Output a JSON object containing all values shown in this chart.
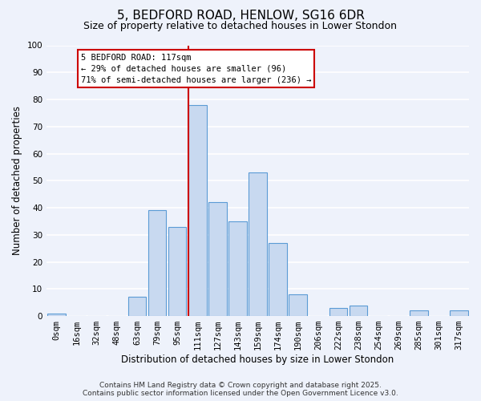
{
  "title": "5, BEDFORD ROAD, HENLOW, SG16 6DR",
  "subtitle": "Size of property relative to detached houses in Lower Stondon",
  "xlabel": "Distribution of detached houses by size in Lower Stondon",
  "ylabel": "Number of detached properties",
  "bin_labels": [
    "0sqm",
    "16sqm",
    "32sqm",
    "48sqm",
    "63sqm",
    "79sqm",
    "95sqm",
    "111sqm",
    "127sqm",
    "143sqm",
    "159sqm",
    "174sqm",
    "190sqm",
    "206sqm",
    "222sqm",
    "238sqm",
    "254sqm",
    "269sqm",
    "285sqm",
    "301sqm",
    "317sqm"
  ],
  "bar_heights": [
    1,
    0,
    0,
    0,
    7,
    39,
    33,
    78,
    42,
    35,
    53,
    27,
    8,
    0,
    3,
    4,
    0,
    0,
    2,
    0,
    2
  ],
  "bar_color": "#c8d9f0",
  "bar_edge_color": "#5b9bd5",
  "vline_index": 7,
  "vline_color": "#cc0000",
  "annotation_title": "5 BEDFORD ROAD: 117sqm",
  "annotation_line1": "← 29% of detached houses are smaller (96)",
  "annotation_line2": "71% of semi-detached houses are larger (236) →",
  "annotation_box_color": "#ffffff",
  "annotation_border_color": "#cc0000",
  "ylim": [
    0,
    100
  ],
  "yticks": [
    0,
    10,
    20,
    30,
    40,
    50,
    60,
    70,
    80,
    90,
    100
  ],
  "footer1": "Contains HM Land Registry data © Crown copyright and database right 2025.",
  "footer2": "Contains public sector information licensed under the Open Government Licence v3.0.",
  "background_color": "#eef2fb",
  "grid_color": "#ffffff",
  "title_fontsize": 11,
  "subtitle_fontsize": 9,
  "axis_label_fontsize": 8.5,
  "tick_fontsize": 7.5,
  "annotation_fontsize": 7.5,
  "footer_fontsize": 6.5
}
